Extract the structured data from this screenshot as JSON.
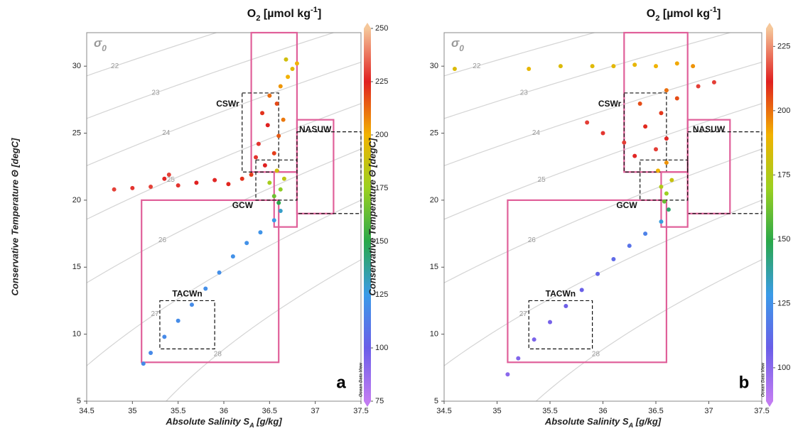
{
  "chart_data": [
    {
      "type": "scatter",
      "panel_label": "a",
      "colorbar_label": [
        "O",
        "2",
        " [µmol kg",
        "-1",
        "]"
      ],
      "xlabel": [
        "Absolute Salinity S",
        "A",
        " [g/kg]"
      ],
      "ylabel": "Conservative Temperature Θ [degC]",
      "sigma_label": [
        "σ",
        "0"
      ],
      "watermark": "Ocean Data View",
      "xlim": [
        34.5,
        37.5
      ],
      "xticks": [
        34.5,
        35,
        35.5,
        36,
        36.5,
        37,
        37.5
      ],
      "ylim": [
        5,
        32.5
      ],
      "yticks": [
        5,
        10,
        15,
        20,
        25,
        30
      ],
      "clim": [
        75,
        250
      ],
      "cticks": [
        75,
        100,
        125,
        150,
        175,
        200,
        225,
        250
      ],
      "colormap": [
        "#c27cf2",
        "#6a5ee8",
        "#3a9be8",
        "#2aa84a",
        "#9cd020",
        "#f2b200",
        "#e02020",
        "#f5c79a"
      ],
      "isopycnals": [
        22,
        23,
        24,
        25,
        26,
        27,
        28
      ],
      "regions": [
        {
          "box": [
            35.1,
            36.6,
            7.9,
            20
          ],
          "style": "solid"
        },
        {
          "label": "TACWn",
          "box": [
            35.3,
            35.9,
            8.9,
            12.5
          ],
          "style": "dashed"
        },
        {
          "box": [
            36.3,
            36.8,
            22.1,
            32.5
          ],
          "style": "solid"
        },
        {
          "label": "CSWr",
          "box": [
            36.2,
            36.6,
            22.1,
            28
          ],
          "style": "dashed"
        },
        {
          "label": "NASUW",
          "box": [
            36.8,
            37.2,
            19,
            26
          ],
          "style": "solid"
        },
        {
          "box": [
            36.8,
            37.5,
            19,
            25.1
          ],
          "style": "dashed"
        },
        {
          "box": [
            36.55,
            36.8,
            18,
            22.1
          ],
          "style": "solid"
        },
        {
          "label": "GCW",
          "box": [
            36.35,
            36.8,
            20,
            23
          ],
          "style": "dashed"
        }
      ],
      "x": [
        35.12,
        35.2,
        35.35,
        35.5,
        35.65,
        35.8,
        35.95,
        36.1,
        36.25,
        36.4,
        36.55,
        36.62,
        36.6,
        36.55,
        36.62,
        36.5,
        36.66,
        36.58,
        36.45,
        36.55,
        36.38,
        36.6,
        36.48,
        36.42,
        36.58,
        36.5,
        36.62,
        36.7,
        36.75,
        36.68,
        36.8,
        36.35,
        36.65,
        34.8,
        35.0,
        35.2,
        35.35,
        35.5,
        35.7,
        35.9,
        36.05,
        36.2,
        36.3,
        35.4
      ],
      "y": [
        7.8,
        8.6,
        9.8,
        11,
        12.2,
        13.4,
        14.6,
        15.8,
        16.8,
        17.6,
        18.5,
        19.2,
        19.8,
        20.3,
        20.8,
        21.3,
        21.6,
        22.2,
        22.6,
        23.5,
        24.2,
        24.8,
        25.6,
        26.5,
        27.2,
        27.8,
        28.5,
        29.2,
        29.8,
        30.5,
        30.2,
        23.2,
        26,
        20.8,
        20.9,
        21.0,
        21.6,
        21.1,
        21.3,
        21.5,
        21.2,
        21.6,
        21.9,
        21.9
      ],
      "color_values": [
        118,
        118,
        118,
        119,
        119,
        120,
        120,
        121,
        121,
        122,
        125,
        130,
        150,
        165,
        172,
        178,
        185,
        190,
        225,
        220,
        228,
        215,
        225,
        222,
        218,
        212,
        205,
        200,
        195,
        190,
        200,
        228,
        210,
        230,
        228,
        230,
        226,
        228,
        225,
        226,
        224,
        222,
        220,
        230
      ]
    },
    {
      "type": "scatter",
      "panel_label": "b",
      "colorbar_label": [
        "O",
        "2",
        " [µmol kg",
        "-1",
        "]"
      ],
      "xlabel": [
        "Absolute Salinity S",
        "A",
        " [g/kg]"
      ],
      "ylabel": "Conservative Temperature Θ [degC]",
      "sigma_label": [
        "σ",
        "0"
      ],
      "watermark": "Ocean Data View",
      "xlim": [
        34.5,
        37.5
      ],
      "xticks": [
        34.5,
        35,
        35.5,
        36,
        36.5,
        37,
        37.5
      ],
      "ylim": [
        5,
        32.5
      ],
      "yticks": [
        5,
        10,
        15,
        20,
        25,
        30
      ],
      "clim": [
        87,
        232
      ],
      "cticks": [
        100,
        125,
        150,
        175,
        200,
        225
      ],
      "colormap": [
        "#c27cf2",
        "#6a5ee8",
        "#3a9be8",
        "#2aa84a",
        "#9cd020",
        "#f2b200",
        "#e02020",
        "#f5c79a"
      ],
      "isopycnals": [
        22,
        23,
        24,
        25,
        26,
        27,
        28
      ],
      "regions": [
        {
          "box": [
            35.1,
            36.6,
            7.9,
            20
          ],
          "style": "solid"
        },
        {
          "label": "TACWn",
          "box": [
            35.3,
            35.9,
            8.9,
            12.5
          ],
          "style": "dashed"
        },
        {
          "box": [
            36.2,
            36.8,
            22.1,
            32.5
          ],
          "style": "solid"
        },
        {
          "label": "CSWr",
          "box": [
            36.2,
            36.6,
            22.1,
            28
          ],
          "style": "dashed"
        },
        {
          "label": "NASUW",
          "box": [
            36.8,
            37.2,
            19,
            26
          ],
          "style": "solid"
        },
        {
          "box": [
            36.8,
            37.5,
            19,
            25.1
          ],
          "style": "dashed"
        },
        {
          "box": [
            36.55,
            36.8,
            18,
            22.1
          ],
          "style": "solid"
        },
        {
          "label": "GCW",
          "box": [
            36.35,
            36.8,
            20,
            23
          ],
          "style": "dashed"
        }
      ],
      "x": [
        35.1,
        35.2,
        35.35,
        35.5,
        35.65,
        35.8,
        35.95,
        36.1,
        36.25,
        36.4,
        36.55,
        36.62,
        36.58,
        36.6,
        36.55,
        36.65,
        36.52,
        36.6,
        36.3,
        36.5,
        36.2,
        36.6,
        36.0,
        35.85,
        36.4,
        36.55,
        36.7,
        36.9,
        37.05,
        36.35,
        36.6,
        34.6,
        35.3,
        35.6,
        35.9,
        36.1,
        36.3,
        36.5,
        36.7,
        36.85
      ],
      "y": [
        7.0,
        8.2,
        9.6,
        10.9,
        12.1,
        13.3,
        14.5,
        15.6,
        16.6,
        17.5,
        18.4,
        19.3,
        19.9,
        20.5,
        21.0,
        21.5,
        22.2,
        22.8,
        23.3,
        23.8,
        24.3,
        24.6,
        25.0,
        25.8,
        25.5,
        26.5,
        27.6,
        28.5,
        28.8,
        27.2,
        28.2,
        29.8,
        29.8,
        30.0,
        30.0,
        30.0,
        30.1,
        30.0,
        30.2,
        30.0
      ],
      "color_values": [
        100,
        102,
        104,
        105,
        107,
        108,
        110,
        112,
        115,
        120,
        130,
        145,
        160,
        170,
        175,
        180,
        190,
        195,
        212,
        215,
        215,
        212,
        214,
        215,
        210,
        208,
        205,
        215,
        215,
        205,
        200,
        185,
        188,
        185,
        186,
        187,
        188,
        190,
        192,
        195
      ]
    }
  ]
}
